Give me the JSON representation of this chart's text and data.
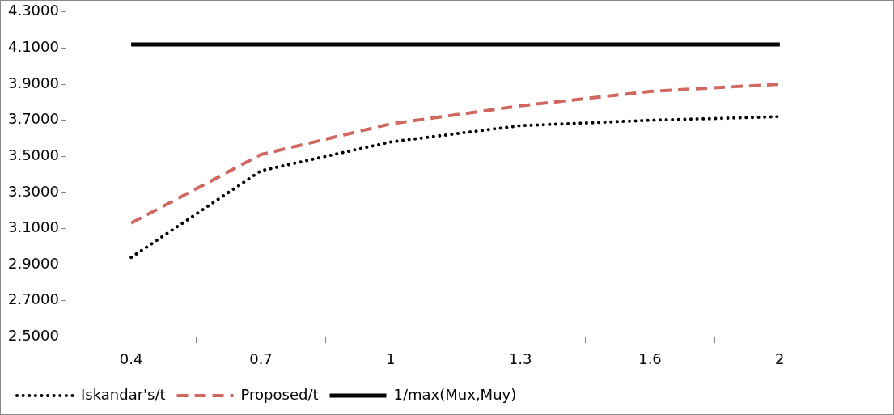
{
  "chart_data": {
    "type": "line",
    "categories": [
      "0.4",
      "0.7",
      "1",
      "1.3",
      "1.6",
      "2"
    ],
    "series": [
      {
        "name": "Iskandar's/t",
        "color": "#000000",
        "line_style": "dotted",
        "values": [
          2.94,
          3.42,
          3.58,
          3.67,
          3.7,
          3.72
        ]
      },
      {
        "name": "Proposed/t",
        "color": "#d0685f",
        "line_style": "dashed",
        "values": [
          3.13,
          3.51,
          3.68,
          3.78,
          3.86,
          3.9
        ]
      },
      {
        "name": "1/max(Mux,Muy)",
        "color": "#000000",
        "line_style": "solid",
        "values": [
          4.12,
          4.12,
          4.12,
          4.12,
          4.12,
          4.12
        ]
      }
    ],
    "ylim": [
      2.5,
      4.3
    ],
    "yticks": [
      {
        "value": 2.5,
        "label": "2.5000"
      },
      {
        "value": 2.7,
        "label": "2.7000"
      },
      {
        "value": 2.9,
        "label": "2.9000"
      },
      {
        "value": 3.1,
        "label": "3.1000"
      },
      {
        "value": 3.3,
        "label": "3.3000"
      },
      {
        "value": 3.5,
        "label": "3.5000"
      },
      {
        "value": 3.7,
        "label": "3.7000"
      },
      {
        "value": 3.9,
        "label": "3.9000"
      },
      {
        "value": 4.1,
        "label": "4.1000"
      },
      {
        "value": 4.3,
        "label": "4.3000"
      }
    ],
    "grid": false,
    "legend": "bottom",
    "marker": "none"
  }
}
